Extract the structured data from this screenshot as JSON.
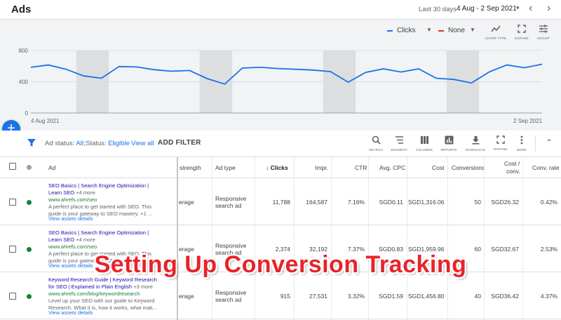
{
  "header": {
    "title": "Ads",
    "date_range_label": "Last 30 days",
    "date_range_value": "4 Aug - 2 Sep 2021",
    "caret": "▾",
    "prev": "‹",
    "next": "›"
  },
  "chart_controls": {
    "metric1": "Clicks",
    "metric1_color": "#1a73e8",
    "metric2": "None",
    "metric2_color": "#d93025",
    "tools": [
      {
        "icon": "chart-type-icon",
        "label": "CHART TYPE"
      },
      {
        "icon": "expand-icon",
        "label": "EXPAND"
      },
      {
        "icon": "adjust-icon",
        "label": "ADJUST"
      }
    ]
  },
  "chart_data": {
    "type": "line",
    "x_start_label": "4 Aug 2021",
    "x_end_label": "2 Sep 2021",
    "y_ticks": [
      "800",
      "400",
      "0"
    ],
    "ylim": [
      0,
      800
    ],
    "line_color": "#1a73e8",
    "weekend_bands": [
      [
        3,
        4
      ],
      [
        10,
        11
      ],
      [
        17,
        18
      ],
      [
        24,
        25
      ]
    ],
    "series": [
      {
        "values": [
          585,
          615,
          560,
          475,
          445,
          595,
          590,
          555,
          535,
          545,
          440,
          370,
          575,
          585,
          570,
          560,
          550,
          530,
          395,
          520,
          565,
          525,
          565,
          445,
          430,
          385,
          525,
          615,
          580,
          625
        ]
      }
    ]
  },
  "fab": {
    "label": "+"
  },
  "filters": {
    "ad_status_key": "Ad status:",
    "ad_status_val": "All",
    "status_key": "Status:",
    "status_val": "Eligible",
    "view_all": "View all",
    "add_filter": "ADD FILTER",
    "tools": [
      {
        "icon": "search-icon",
        "label": "SEARCH"
      },
      {
        "icon": "segment-icon",
        "label": "SEGMENT"
      },
      {
        "icon": "columns-icon",
        "label": "COLUMNS"
      },
      {
        "icon": "reports-icon",
        "label": "REPORTS"
      },
      {
        "icon": "download-icon",
        "label": "DOWNLOAD"
      },
      {
        "icon": "expand-icon",
        "label": "EXPAND"
      },
      {
        "icon": "more-icon",
        "label": "MORE"
      }
    ],
    "collapse": "⌃"
  },
  "table": {
    "headers": {
      "ad": "Ad",
      "strength": "strength",
      "ad_type": "Ad type",
      "clicks": "Clicks",
      "impr": "Impr.",
      "ctr": "CTR",
      "avg_cpc": "Avg. CPC",
      "cost": "Cost",
      "conversions": "Conversions",
      "cost_conv_1": "Cost /",
      "cost_conv_2": "conv.",
      "conv_rate": "Conv. rate"
    },
    "rows": [
      {
        "title_1": "SEO Basics | Search Engine Optimization |",
        "title_2": "Learn SEO",
        "more": "+4 more",
        "url": "www.ahrefs.com/seo",
        "desc_1": "A perfect place to get started with SEO. This",
        "desc_2": "guide is your gateway to SEO mastery.",
        "desc_more": "+1 ...",
        "view_assets": "View assets details",
        "strength": "erage",
        "ad_type_1": "Responsive",
        "ad_type_2": "search ad",
        "clicks": "11,788",
        "impr": "164,587",
        "ctr": "7.16%",
        "avg_cpc": "SGD0.11",
        "cost": "SGD1,316.06",
        "conversions": "50",
        "cost_conv": "SGD26.32",
        "conv_rate": "0.42%"
      },
      {
        "title_1": "SEO Basics | Search Engine Optimization |",
        "title_2": "Learn SEO",
        "more": "+4 more",
        "url": "www.ahrefs.com/seo",
        "desc_1": "A perfect place to get started with SEO. This",
        "desc_2": "guide is your gateway to SEO mastery.",
        "desc_more": "+1 ...",
        "view_assets": "View assets details",
        "strength": "erage",
        "ad_type_1": "Responsive",
        "ad_type_2": "search ad",
        "clicks": "2,374",
        "impr": "32,192",
        "ctr": "7.37%",
        "avg_cpc": "SGD0.83",
        "cost": "SGD1,959.96",
        "conversions": "60",
        "cost_conv": "SGD32.67",
        "conv_rate": "2.53%"
      },
      {
        "title_1": "Keyword Research Guide | Keyword Research",
        "title_2": "for SEO | Explained in Plain English",
        "more": "+3 more",
        "url": "www.ahrefs.com/blog/keywordresearch",
        "desc_1": "Level up your SEO with our guide to Keyword",
        "desc_2": "Research. What it is, how it works, what mak...",
        "desc_more": "",
        "view_assets": "View assets details",
        "strength": "erage",
        "ad_type_1": "Responsive",
        "ad_type_2": "search ad",
        "clicks": "915",
        "impr": "27,531",
        "ctr": "3.32%",
        "avg_cpc": "SGD1.59",
        "cost": "SGD1,456.80",
        "conversions": "40",
        "cost_conv": "SGD36.42",
        "conv_rate": "4.37%"
      }
    ],
    "status_color": "#188038"
  },
  "overlay": {
    "headline": "Setting Up Conversion Tracking"
  }
}
